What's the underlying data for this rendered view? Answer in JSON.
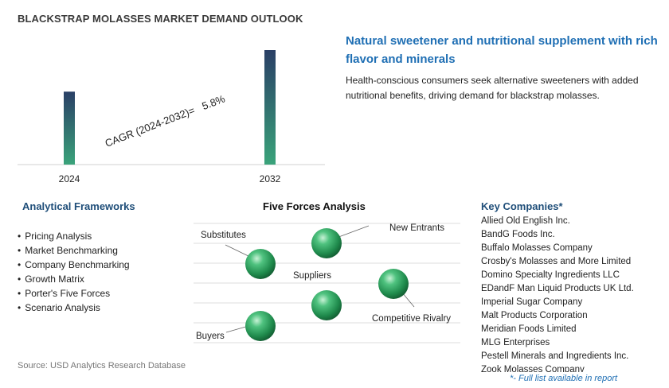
{
  "title": "BLACKSTRAP MOLASSES MARKET DEMAND OUTLOOK",
  "chart_data": {
    "type": "bar",
    "categories": [
      "2024",
      "2032"
    ],
    "values": [
      1.0,
      1.57
    ],
    "annotation": "CAGR (2024-2032)=   5.8%",
    "colors": {
      "top": "#2a3f66",
      "bottom": "#3aa37a"
    },
    "grid": false
  },
  "highlight": {
    "title": "Natural sweetener and nutritional supplement with rich flavor and minerals",
    "description": "Health-conscious consumers seek alternative sweeteners with added nutritional benefits, driving demand for blackstrap molasses."
  },
  "frameworks": {
    "title": "Analytical Frameworks",
    "items": [
      "Pricing Analysis",
      "Market Benchmarking",
      "Company Benchmarking",
      "Growth Matrix",
      "Porter's Five Forces",
      "Scenario Analysis"
    ]
  },
  "five_forces": {
    "title": "Five Forces Analysis",
    "labels": {
      "substitutes": "Substitutes",
      "new_entrants": "New Entrants",
      "suppliers": "Suppliers",
      "competitive_rivalry": "Competitive Rivalry",
      "buyers": "Buyers"
    },
    "sphere_color": "#2e9e5e"
  },
  "companies": {
    "title": "Key Companies*",
    "items": [
      "Allied Old English Inc.",
      "BandG Foods Inc.",
      "Buffalo Molasses Company",
      "Crosby's Molasses and More Limited",
      "Domino Specialty Ingredients LLC",
      "EDandF Man Liquid Products UK Ltd.",
      "Imperial Sugar Company",
      "Malt Products Corporation",
      "Meridian Foods Limited",
      "MLG Enterprises",
      "Pestell Minerals and Ingredients Inc.",
      "Zook Molasses Company"
    ],
    "note": "*- Full list available in report"
  },
  "source": "Source: USD Analytics Research Database"
}
